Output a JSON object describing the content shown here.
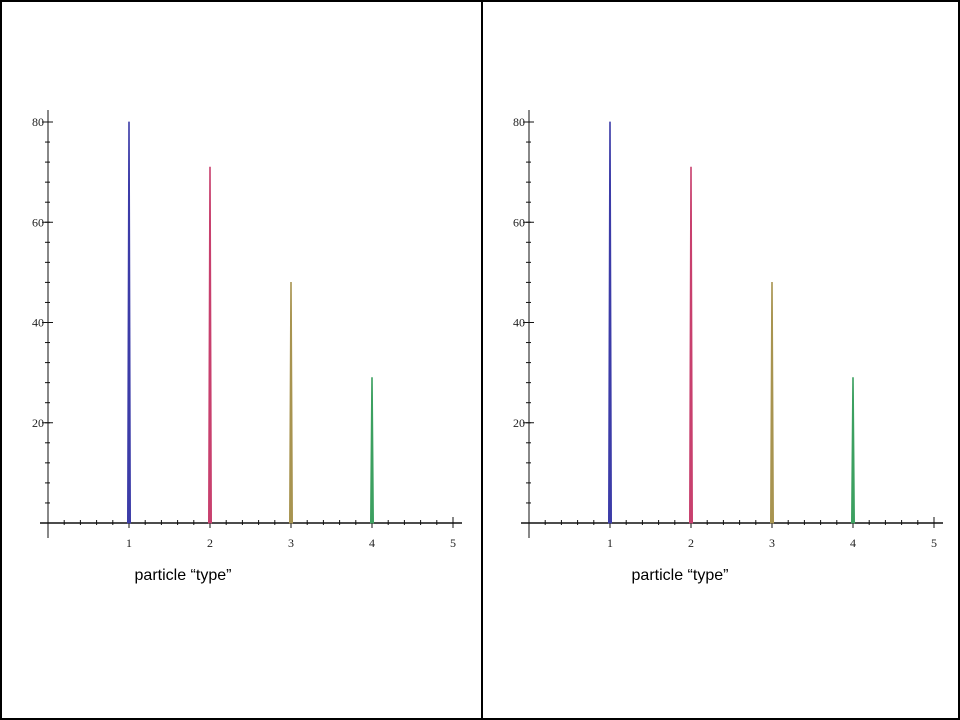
{
  "chart_data": [
    {
      "type": "bar",
      "xlabel": "particle “type”",
      "ylabel": "",
      "title": "",
      "xlim": [
        0,
        5
      ],
      "ylim": [
        0,
        80
      ],
      "xticks": [
        1,
        2,
        3,
        4,
        5
      ],
      "yticks": [
        20,
        40,
        60,
        80
      ],
      "categories": [
        1,
        2,
        3,
        4
      ],
      "values": [
        80,
        71,
        48,
        29
      ],
      "colors": [
        "#3c3ca8",
        "#c8406e",
        "#a89450",
        "#3ca060"
      ],
      "grid": false
    },
    {
      "type": "bar",
      "xlabel": "particle “type”",
      "ylabel": "",
      "title": "",
      "xlim": [
        0,
        5
      ],
      "ylim": [
        0,
        80
      ],
      "xticks": [
        1,
        2,
        3,
        4,
        5
      ],
      "yticks": [
        20,
        40,
        60,
        80
      ],
      "categories": [
        1,
        2,
        3,
        4
      ],
      "values": [
        80,
        71,
        48,
        29
      ],
      "colors": [
        "#3c3ca8",
        "#c8406e",
        "#a89450",
        "#3ca060"
      ],
      "grid": false
    }
  ]
}
